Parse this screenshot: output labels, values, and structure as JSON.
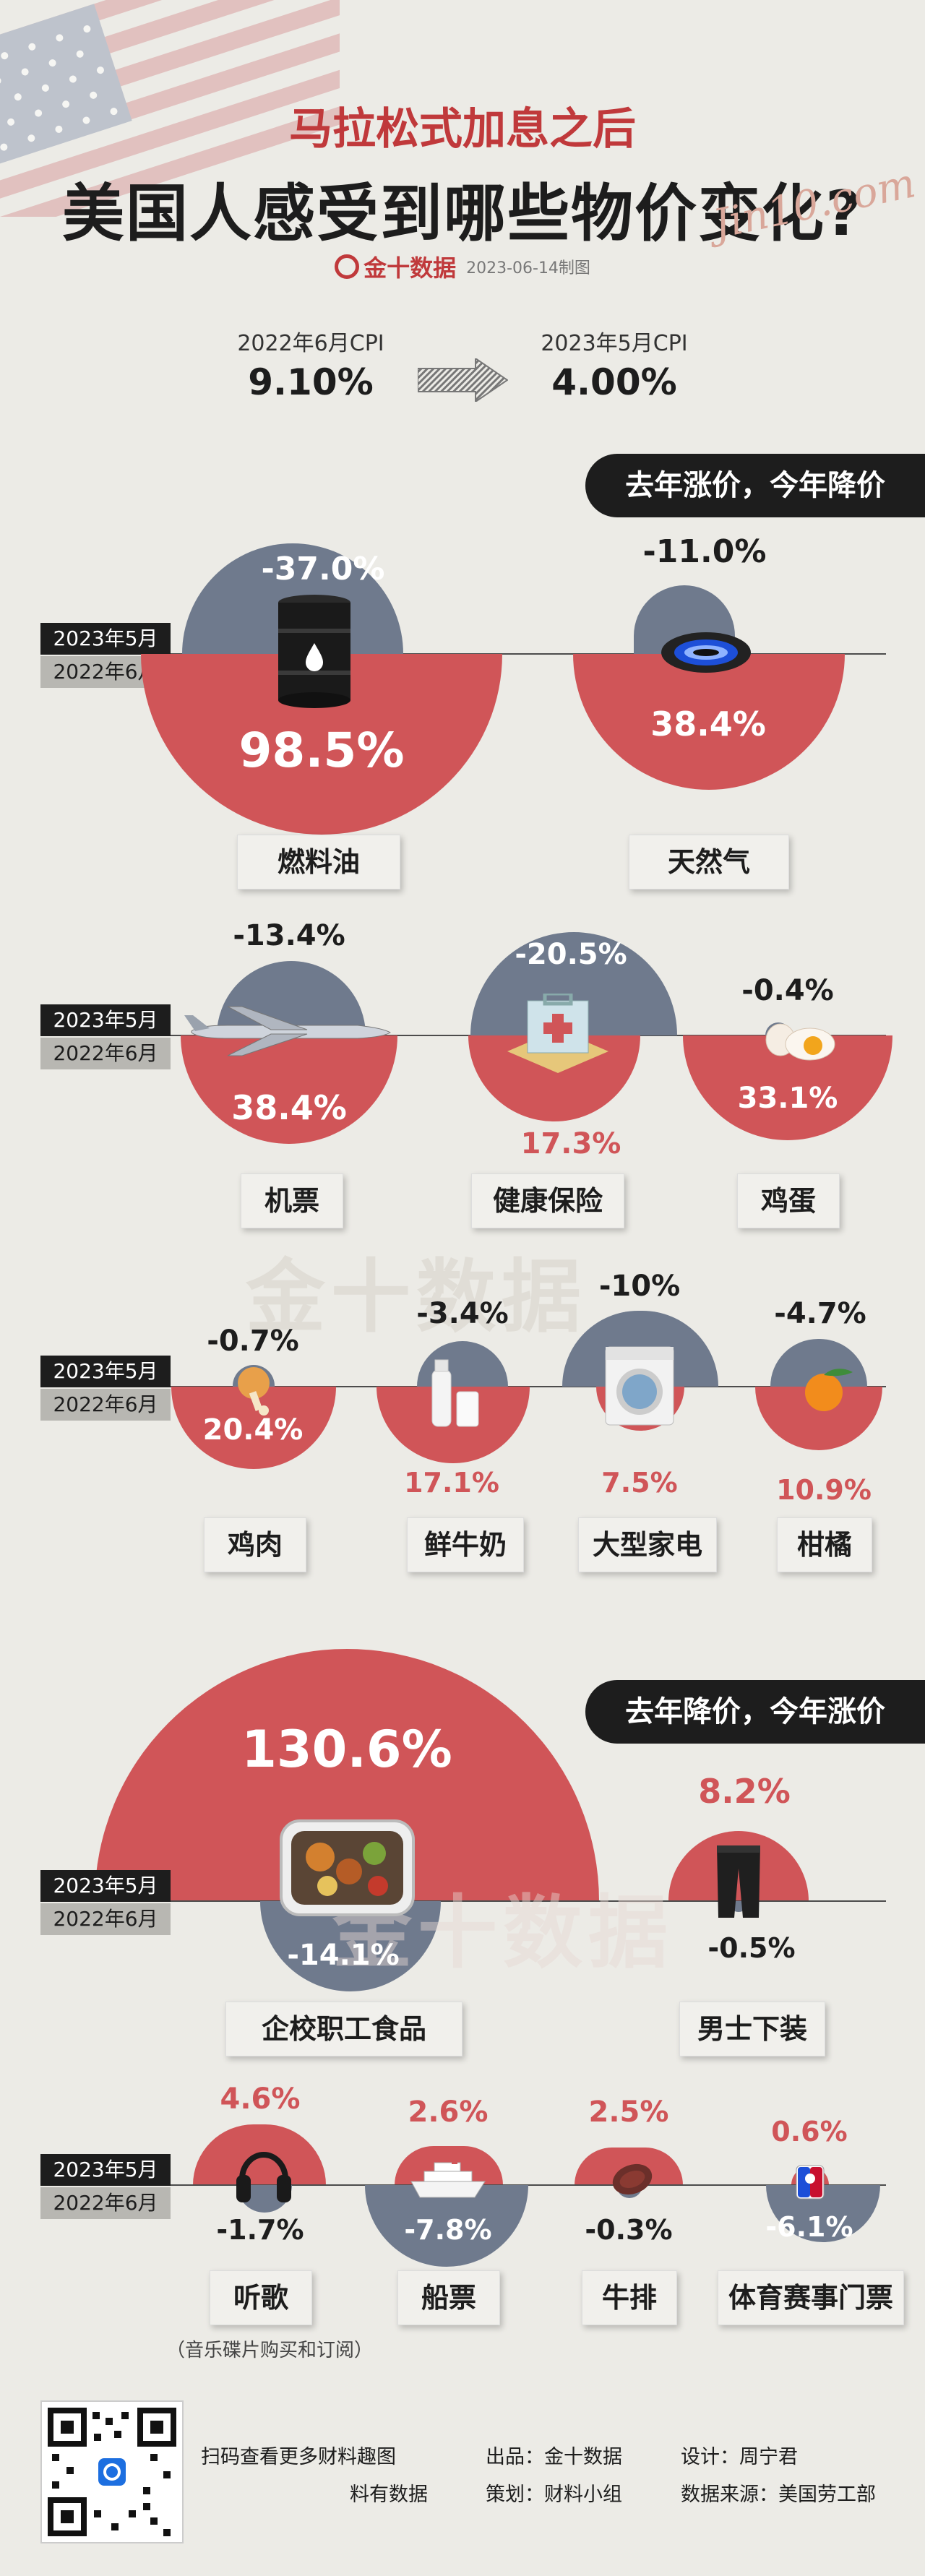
{
  "header": {
    "title_line1": "马拉松式加息之后",
    "title_line2": "美国人感受到哪些物价变化?",
    "signature": "Jin10.com",
    "brand": "金十数据",
    "date": "2023-06-14制图",
    "watermark": "金十数据"
  },
  "cpi": {
    "left_label": "2022年6月CPI",
    "left_value": "9.10%",
    "right_label": "2023年5月CPI",
    "right_value": "4.00%"
  },
  "axis_labels": {
    "upper": "2023年5月",
    "lower": "2022年6月"
  },
  "sections": {
    "s1_tag": "去年涨价，今年降价",
    "s2_tag": "去年降价，今年涨价"
  },
  "items": {
    "fuel_oil": {
      "label": "燃料油",
      "y2023": "-37.0%",
      "y2022": "98.5%"
    },
    "natural_gas": {
      "label": "天然气",
      "y2023": "-11.0%",
      "y2022": "38.4%"
    },
    "airfare": {
      "label": "机票",
      "y2023": "-13.4%",
      "y2022": "38.4%"
    },
    "health_ins": {
      "label": "健康保险",
      "y2023": "-20.5%",
      "y2022": "17.3%"
    },
    "eggs": {
      "label": "鸡蛋",
      "y2023": "-0.4%",
      "y2022": "33.1%"
    },
    "chicken": {
      "label": "鸡肉",
      "y2023": "-0.7%",
      "y2022": "20.4%"
    },
    "milk": {
      "label": "鲜牛奶",
      "y2023": "-3.4%",
      "y2022": "17.1%"
    },
    "appliances": {
      "label": "大型家电",
      "y2023": "-10%",
      "y2022": "7.5%"
    },
    "citrus": {
      "label": "柑橘",
      "y2023": "-4.7%",
      "y2022": "10.9%"
    },
    "school_food": {
      "label": "企校职工食品",
      "y2023": "130.6%",
      "y2022": "-14.1%"
    },
    "mens_wear": {
      "label": "男士下装",
      "y2023": "8.2%",
      "y2022": "-0.5%"
    },
    "music": {
      "label": "听歌",
      "y2023": "4.6%",
      "y2022": "-1.7%",
      "note": "（音乐碟片购买和订阅）"
    },
    "ship": {
      "label": "船票",
      "y2023": "2.6%",
      "y2022": "-7.8%"
    },
    "steak": {
      "label": "牛排",
      "y2023": "2.5%",
      "y2022": "-0.3%"
    },
    "sports": {
      "label": "体育赛事门票",
      "y2023": "0.6%",
      "y2022": "-6.1%"
    }
  },
  "footer": {
    "scan": "扫码查看更多财料趣图",
    "scan2": "料有数据",
    "producer": "出品：金十数据",
    "planner": "策划：财料小组",
    "designer": "设计：周宁君",
    "source": "数据来源：美国劳工部"
  },
  "colors": {
    "red": "#d05558",
    "slate": "#6f7a8d",
    "dark": "#1d1d1d",
    "bg": "#ecebe6"
  }
}
